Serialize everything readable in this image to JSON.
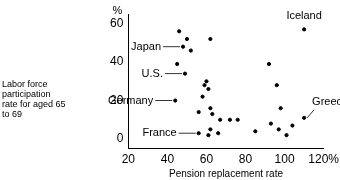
{
  "chart_data": {
    "type": "scatter",
    "xlabel": "Pension replacement rate",
    "ylabel": "Labor force participation rate for aged 65 to 69",
    "yunit": "%",
    "x": [
      46,
      50,
      62,
      48,
      52,
      45,
      49,
      59,
      60,
      61,
      58,
      62,
      44,
      56,
      63,
      67,
      72,
      76,
      62,
      66,
      85,
      93,
      92,
      96,
      98,
      97,
      101,
      104,
      110,
      110,
      56,
      61
    ],
    "values": [
      56,
      52,
      52,
      48,
      46,
      39,
      34,
      28,
      30,
      26,
      22,
      16,
      20,
      14,
      13,
      10,
      10,
      10,
      5,
      3,
      4,
      8,
      39,
      28,
      16,
      5,
      2,
      7,
      57,
      11,
      3,
      2
    ],
    "color": "#000000",
    "marker": "circle",
    "xlim": [
      20,
      120
    ],
    "xticks": [
      20,
      40,
      60,
      80,
      100,
      {
        "value": 120,
        "label": "120%"
      }
    ],
    "ylim": [
      -5,
      65
    ],
    "yticks": [
      0,
      20,
      40,
      60
    ],
    "grid": false,
    "annotations": [
      {
        "text": "Japan",
        "x": 48,
        "y": 48
      },
      {
        "text": "U.S.",
        "x": 49,
        "y": 34
      },
      {
        "text": "Germany",
        "x": 44,
        "y": 20
      },
      {
        "text": "France",
        "x": 56,
        "y": 3
      },
      {
        "text": "Iceland",
        "x": 110,
        "y": 57
      },
      {
        "text": "Greece",
        "x": 110,
        "y": 11
      }
    ]
  }
}
